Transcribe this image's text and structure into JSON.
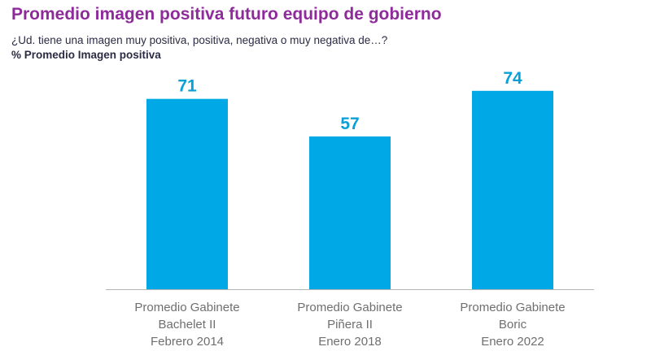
{
  "chart_data": {
    "type": "bar",
    "title": "Promedio imagen positiva futuro equipo de gobierno",
    "subtitle": "¿Ud. tiene una imagen muy positiva, positiva, negativa o muy negativa de…?",
    "ylabel": "% Promedio Imagen positiva",
    "categories": [
      [
        "Promedio Gabinete",
        "Bachelet II",
        "Febrero 2014"
      ],
      [
        "Promedio Gabinete",
        "Piñera II",
        "Enero 2018"
      ],
      [
        "Promedio Gabinete",
        "Boric",
        "Enero 2022"
      ]
    ],
    "values": [
      71,
      57,
      74
    ],
    "ylim": [
      0,
      80
    ],
    "grid": false,
    "colors": {
      "bar": "#00a8e6",
      "value_label": "#0b9fd8",
      "title": "#8e2b9b",
      "axis": "#b5b5b5"
    }
  }
}
